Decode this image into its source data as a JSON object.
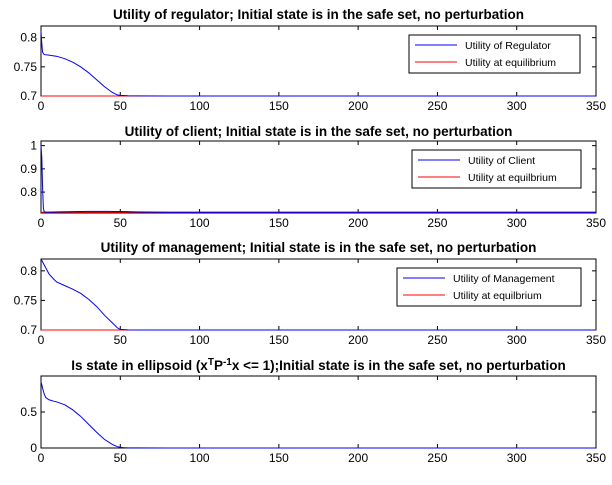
{
  "chart_data": [
    {
      "type": "line",
      "title": "Utility of regulator; Initial state is in the safe set, no perturbation",
      "xlim": [
        0,
        350
      ],
      "ylim": [
        0.7,
        0.82
      ],
      "xticks": [
        0,
        50,
        100,
        150,
        200,
        250,
        300,
        350
      ],
      "yticks": [
        0.7,
        0.75,
        0.8
      ],
      "ytick_labels": [
        "0.7",
        "0.75",
        "0.8"
      ],
      "legend_position": "top-right",
      "series": [
        {
          "name": "Utility of Regulator",
          "color": "#0000ff",
          "x": [
            0,
            0.5,
            1,
            2,
            5,
            10,
            15,
            20,
            25,
            30,
            35,
            40,
            45,
            48,
            50,
            55,
            60,
            80,
            100,
            150,
            200,
            250,
            300,
            350
          ],
          "y": [
            0.811,
            0.79,
            0.775,
            0.771,
            0.77,
            0.768,
            0.764,
            0.758,
            0.75,
            0.74,
            0.728,
            0.716,
            0.706,
            0.702,
            0.701,
            0.7005,
            0.7003,
            0.7001,
            0.7,
            0.7,
            0.7,
            0.7,
            0.7,
            0.7
          ]
        },
        {
          "name": "Utility at equilibrium",
          "color": "#ff0000",
          "x": [
            0,
            350
          ],
          "y": [
            0.7,
            0.7
          ]
        }
      ]
    },
    {
      "type": "line",
      "title": "Utility of client; Initial state is in the safe set, no perturbation",
      "xlim": [
        0,
        350
      ],
      "ylim": [
        0.71,
        1.02
      ],
      "xticks": [
        0,
        50,
        100,
        150,
        200,
        250,
        300,
        350
      ],
      "yticks": [
        0.8,
        0.9,
        1.0
      ],
      "ytick_labels": [
        "0.8",
        "0.9",
        "1"
      ],
      "legend_position": "top-right",
      "series": [
        {
          "name": "Utility of Client",
          "color": "#0000ff",
          "x": [
            0,
            0.5,
            1,
            1.5,
            2,
            3,
            5,
            10,
            20,
            30,
            40,
            50,
            60,
            80,
            100,
            150,
            200,
            250,
            300,
            350
          ],
          "y": [
            1.0,
            0.95,
            0.82,
            0.73,
            0.716,
            0.714,
            0.714,
            0.715,
            0.716,
            0.717,
            0.717,
            0.7165,
            0.715,
            0.7135,
            0.7132,
            0.713,
            0.713,
            0.713,
            0.713,
            0.713
          ]
        },
        {
          "name": "Utility at equilbrium",
          "color": "#ff0000",
          "x": [
            0,
            350
          ],
          "y": [
            0.713,
            0.713
          ]
        }
      ]
    },
    {
      "type": "line",
      "title": "Utility of management; Initial state is in the safe set, no perturbation",
      "xlim": [
        0,
        350
      ],
      "ylim": [
        0.7,
        0.82
      ],
      "xticks": [
        0,
        50,
        100,
        150,
        200,
        250,
        300,
        350
      ],
      "yticks": [
        0.7,
        0.75,
        0.8
      ],
      "ytick_labels": [
        "0.7",
        "0.75",
        "0.8"
      ],
      "legend_position": "top-right",
      "series": [
        {
          "name": "Utility of Management",
          "color": "#0000ff",
          "x": [
            0,
            2,
            5,
            8,
            10,
            15,
            20,
            25,
            30,
            35,
            40,
            45,
            48,
            50,
            55,
            60,
            100,
            150,
            200,
            250,
            300,
            350
          ],
          "y": [
            0.82,
            0.81,
            0.795,
            0.786,
            0.781,
            0.775,
            0.769,
            0.762,
            0.752,
            0.74,
            0.725,
            0.712,
            0.704,
            0.701,
            0.7002,
            0.7,
            0.7,
            0.7,
            0.7,
            0.7,
            0.7,
            0.7
          ]
        },
        {
          "name": "Utility at equilbrium",
          "color": "#ff0000",
          "x": [
            0,
            350
          ],
          "y": [
            0.7,
            0.7
          ]
        }
      ]
    },
    {
      "type": "line",
      "title": "Is state in ellipsoid (x^T P^-1 x <= 1);Initial state is in the safe set, no perturbation",
      "title_parts": {
        "before": "Is state in ellipsoid (x",
        "sup1": "T",
        "middle": "P",
        "sup2": "-1",
        "after": "x <= 1);Initial state is in the safe set, no perturbation"
      },
      "xlim": [
        0,
        350
      ],
      "ylim": [
        0,
        1.0
      ],
      "xticks": [
        0,
        50,
        100,
        150,
        200,
        250,
        300,
        350
      ],
      "yticks": [
        0,
        0.5
      ],
      "ytick_labels": [
        "0",
        "0.5"
      ],
      "series": [
        {
          "name": "",
          "color": "#0000ff",
          "x": [
            0,
            0.5,
            1,
            2,
            3,
            5,
            8,
            10,
            15,
            20,
            25,
            30,
            35,
            40,
            45,
            48,
            50,
            52,
            55,
            60,
            80,
            100,
            150,
            200,
            250,
            300,
            350
          ],
          "y": [
            0.92,
            0.88,
            0.83,
            0.75,
            0.7,
            0.67,
            0.65,
            0.64,
            0.6,
            0.53,
            0.44,
            0.33,
            0.22,
            0.12,
            0.05,
            0.02,
            0.01,
            0.005,
            0.002,
            0.001,
            0.0,
            0.0,
            0.0,
            0.0,
            0.0,
            0.0,
            0.0
          ]
        }
      ]
    }
  ]
}
